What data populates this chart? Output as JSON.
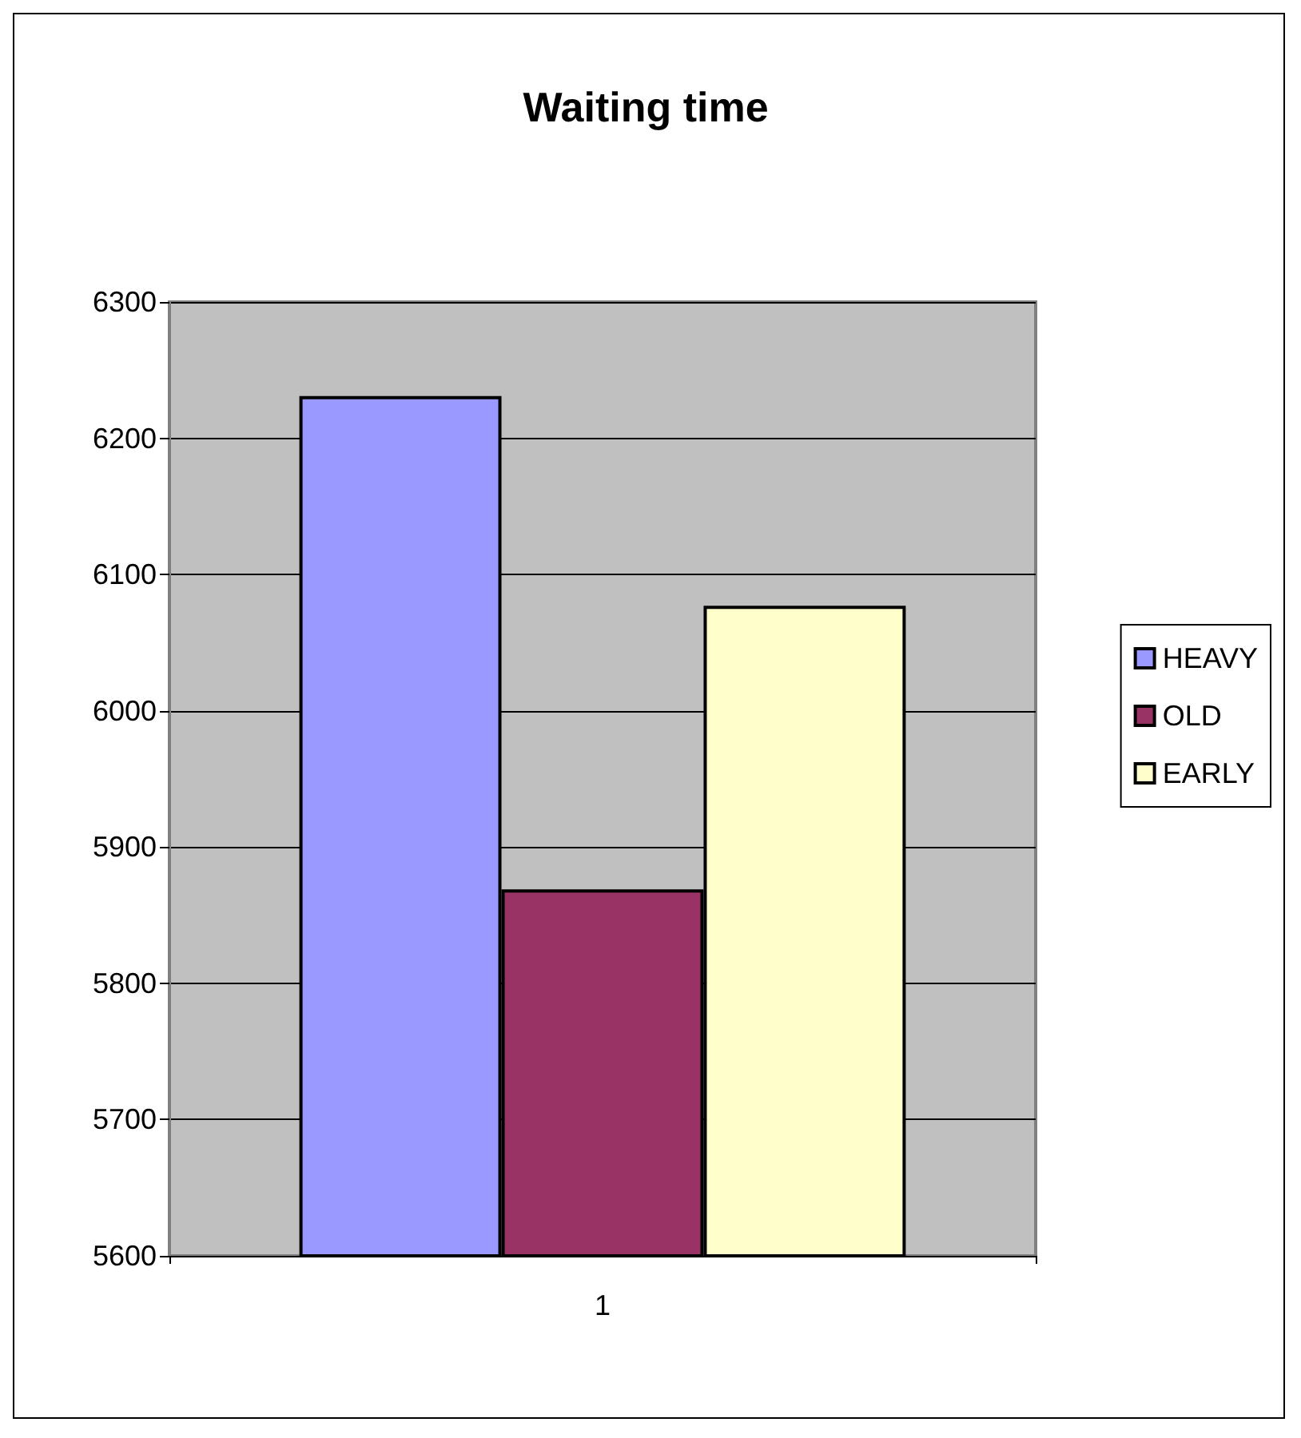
{
  "chart_data": {
    "type": "bar",
    "title": "Waiting time",
    "categories": [
      "1"
    ],
    "series": [
      {
        "name": "HEAVY",
        "color": "#9999ff",
        "values": [
          6231
        ]
      },
      {
        "name": "OLD",
        "color": "#993366",
        "values": [
          5869
        ]
      },
      {
        "name": "EARLY",
        "color": "#ffffcc",
        "values": [
          6077
        ]
      }
    ],
    "ylim": [
      5600,
      6300
    ],
    "yticks": [
      5600,
      5700,
      5800,
      5900,
      6000,
      6100,
      6200,
      6300
    ],
    "grid": "y",
    "legend": "right"
  }
}
